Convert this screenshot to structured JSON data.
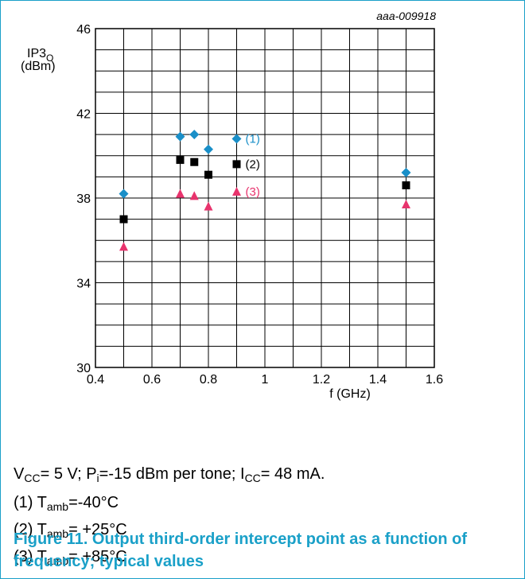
{
  "chart_data": {
    "type": "scatter",
    "id_label": "aaa-009918",
    "ylabel_main": "IP3",
    "ylabel_sub": "O",
    "ylabel_unit": "(dBm)",
    "xlabel": "f (GHz)",
    "xlim": [
      0.4,
      1.6
    ],
    "ylim": [
      30,
      46
    ],
    "x_ticks": [
      "0.4",
      "0.6",
      "0.8",
      "1",
      "1.2",
      "1.4",
      "1.6"
    ],
    "y_ticks": [
      "30",
      "34",
      "38",
      "42",
      "46"
    ],
    "x_tick_values": [
      0.4,
      0.6,
      0.8,
      1.0,
      1.2,
      1.4,
      1.6
    ],
    "y_tick_values": [
      30,
      34,
      38,
      42,
      46
    ],
    "grid": true,
    "series": [
      {
        "label": "(1)",
        "marker": "diamond",
        "color": "#1a8fc8",
        "x": [
          0.5,
          0.7,
          0.75,
          0.8,
          0.9,
          1.5
        ],
        "y": [
          38.2,
          40.9,
          41.0,
          40.3,
          40.8,
          39.2
        ]
      },
      {
        "label": "(2)",
        "marker": "square",
        "color": "#000000",
        "x": [
          0.5,
          0.7,
          0.75,
          0.8,
          0.9,
          1.5
        ],
        "y": [
          37.0,
          39.8,
          39.7,
          39.1,
          39.6,
          38.6
        ]
      },
      {
        "label": "(3)",
        "marker": "triangle",
        "color": "#e8336d",
        "x": [
          0.5,
          0.7,
          0.75,
          0.8,
          0.9,
          1.5
        ],
        "y": [
          35.7,
          38.2,
          38.1,
          37.6,
          38.3,
          37.7
        ]
      }
    ]
  },
  "notes": {
    "conditions": {
      "v": "V",
      "v_sub": "CC",
      "v_rest": "= 5 V; P",
      "p_sub": "i",
      "p_rest": "=-15 dBm per tone; I",
      "i_sub": "CC",
      "i_rest": "= 48 mA."
    },
    "n1": {
      "prefix": "(1) T",
      "sub": "amb",
      "rest": "=-40°C"
    },
    "n2": {
      "prefix": "(2) T",
      "sub": "amb",
      "rest": "= +25°C"
    },
    "n3": {
      "prefix": "(3) T",
      "sub": "amb",
      "rest": "= +85°C"
    }
  },
  "caption": "Figure 11. Output third-order intercept point as a function of frequency; typical values"
}
